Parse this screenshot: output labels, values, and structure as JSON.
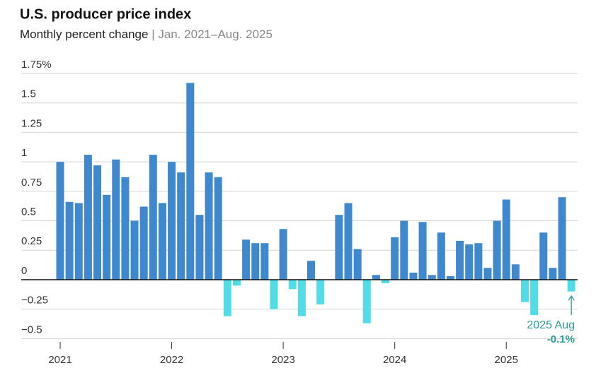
{
  "chart_data": {
    "type": "bar",
    "title": "U.S. producer price index",
    "subtitle": "Monthly percent change",
    "subtitle_range": "| Jan. 2021–Aug. 2025",
    "categories": [
      "2021",
      null,
      null,
      null,
      null,
      null,
      null,
      null,
      null,
      null,
      null,
      null,
      "2022",
      null,
      null,
      null,
      null,
      null,
      null,
      null,
      null,
      null,
      null,
      null,
      "2023",
      null,
      null,
      null,
      null,
      null,
      null,
      null,
      null,
      null,
      null,
      null,
      "2024",
      null,
      null,
      null,
      null,
      null,
      null,
      null,
      null,
      null,
      null,
      null,
      "2025",
      null,
      null,
      null,
      null,
      null,
      null,
      null
    ],
    "values": [
      1.0,
      0.66,
      0.65,
      1.06,
      0.97,
      0.72,
      1.02,
      0.87,
      0.5,
      0.62,
      1.06,
      0.65,
      1.0,
      0.91,
      1.67,
      0.55,
      0.91,
      0.87,
      -0.31,
      -0.05,
      0.34,
      0.31,
      0.31,
      -0.25,
      0.43,
      -0.08,
      -0.31,
      0.16,
      -0.21,
      0,
      0.55,
      0.65,
      0.26,
      -0.37,
      0.04,
      -0.03,
      0.36,
      0.5,
      0.06,
      0.49,
      0.04,
      0.4,
      0.03,
      0.33,
      0.3,
      0.31,
      0.1,
      0.5,
      0.68,
      0.13,
      -0.19,
      -0.3,
      0.4,
      0.1,
      0.7,
      -0.1
    ],
    "color": "#3f88ce",
    "negative_color": "#52dde6",
    "ylim": [
      -0.5,
      1.75
    ],
    "yticks": [
      {
        "value": -0.5,
        "label": "−0.5"
      },
      {
        "value": -0.25,
        "label": "−0.25"
      },
      0,
      0.25,
      0.5,
      0.75,
      1,
      1.25,
      1.5,
      {
        "value": 1.75,
        "label": "1.75%"
      }
    ],
    "grid": true,
    "annotation": {
      "label": "2025 Aug",
      "value_label": "-0.1%",
      "color": "#2c9c9a"
    }
  }
}
